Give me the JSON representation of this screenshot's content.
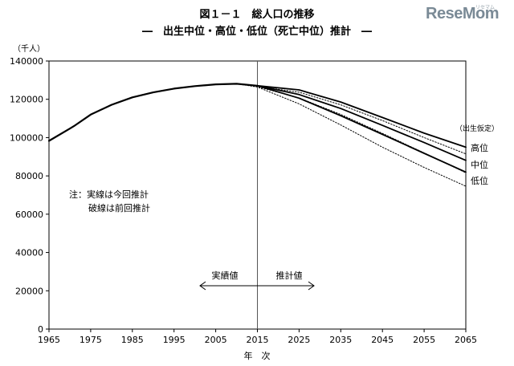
{
  "chart_data": {
    "type": "line",
    "title": "図１－１　総人口の推移",
    "subtitle": "―　出生中位・高位・低位（死亡中位）推計　―",
    "y_unit": "（千人）",
    "xlabel": "年　次",
    "xlim": [
      1965,
      2065
    ],
    "ylim": [
      0,
      140000
    ],
    "x_ticks": [
      "1965",
      "1975",
      "1985",
      "1995",
      "2005",
      "2015",
      "2025",
      "2035",
      "2045",
      "2055",
      "2065"
    ],
    "y_ticks": [
      "0",
      "20000",
      "40000",
      "60000",
      "80000",
      "100000",
      "120000",
      "140000"
    ],
    "split_year": 2015,
    "annotation": {
      "line1": "注：実線は今回推計",
      "line2": "破線は前回推計"
    },
    "left_arrow_label": "実績値",
    "right_arrow_label": "推計値",
    "assumption_label": "（出生仮定）",
    "grid": false,
    "series": [
      {
        "name": "",
        "style": "solid",
        "role": "actual",
        "x": [
          1965,
          1970,
          1971,
          1975,
          1980,
          1985,
          1990,
          1995,
          2000,
          2005,
          2010,
          2015
        ],
        "y": [
          98300,
          104700,
          106000,
          112000,
          117100,
          121000,
          123600,
          125600,
          126900,
          127800,
          128100,
          127100
        ]
      },
      {
        "name": "高位",
        "style": "solid",
        "role": "projection",
        "x": [
          2015,
          2025,
          2035,
          2045,
          2055,
          2065
        ],
        "y": [
          127100,
          124900,
          118600,
          110500,
          102300,
          95000
        ]
      },
      {
        "name": "中位",
        "style": "solid",
        "role": "projection",
        "x": [
          2015,
          2025,
          2035,
          2045,
          2055,
          2065
        ],
        "y": [
          127100,
          122500,
          115200,
          106400,
          97400,
          88100
        ]
      },
      {
        "name": "低位",
        "style": "solid",
        "role": "projection",
        "x": [
          2015,
          2025,
          2035,
          2045,
          2055,
          2065
        ],
        "y": [
          127100,
          120600,
          111400,
          101700,
          91800,
          82000
        ]
      },
      {
        "name": "",
        "style": "dotted",
        "role": "previous",
        "x": [
          2010,
          2015,
          2025,
          2035,
          2045,
          2055,
          2065
        ],
        "y": [
          128100,
          126800,
          123700,
          117100,
          108900,
          100000,
          91500
        ]
      },
      {
        "name": "",
        "style": "dotted",
        "role": "previous",
        "x": [
          2010,
          2015,
          2025,
          2035,
          2045,
          2055,
          2065
        ],
        "y": [
          128100,
          126600,
          120700,
          112100,
          102200,
          92000,
          81600
        ]
      },
      {
        "name": "",
        "style": "dotted",
        "role": "previous",
        "x": [
          2010,
          2015,
          2025,
          2035,
          2045,
          2055,
          2065
        ],
        "y": [
          128100,
          126400,
          117600,
          106600,
          95000,
          84400,
          74600
        ]
      }
    ]
  },
  "watermark": {
    "text": "ReseMom",
    "subtext": "リセマム"
  }
}
